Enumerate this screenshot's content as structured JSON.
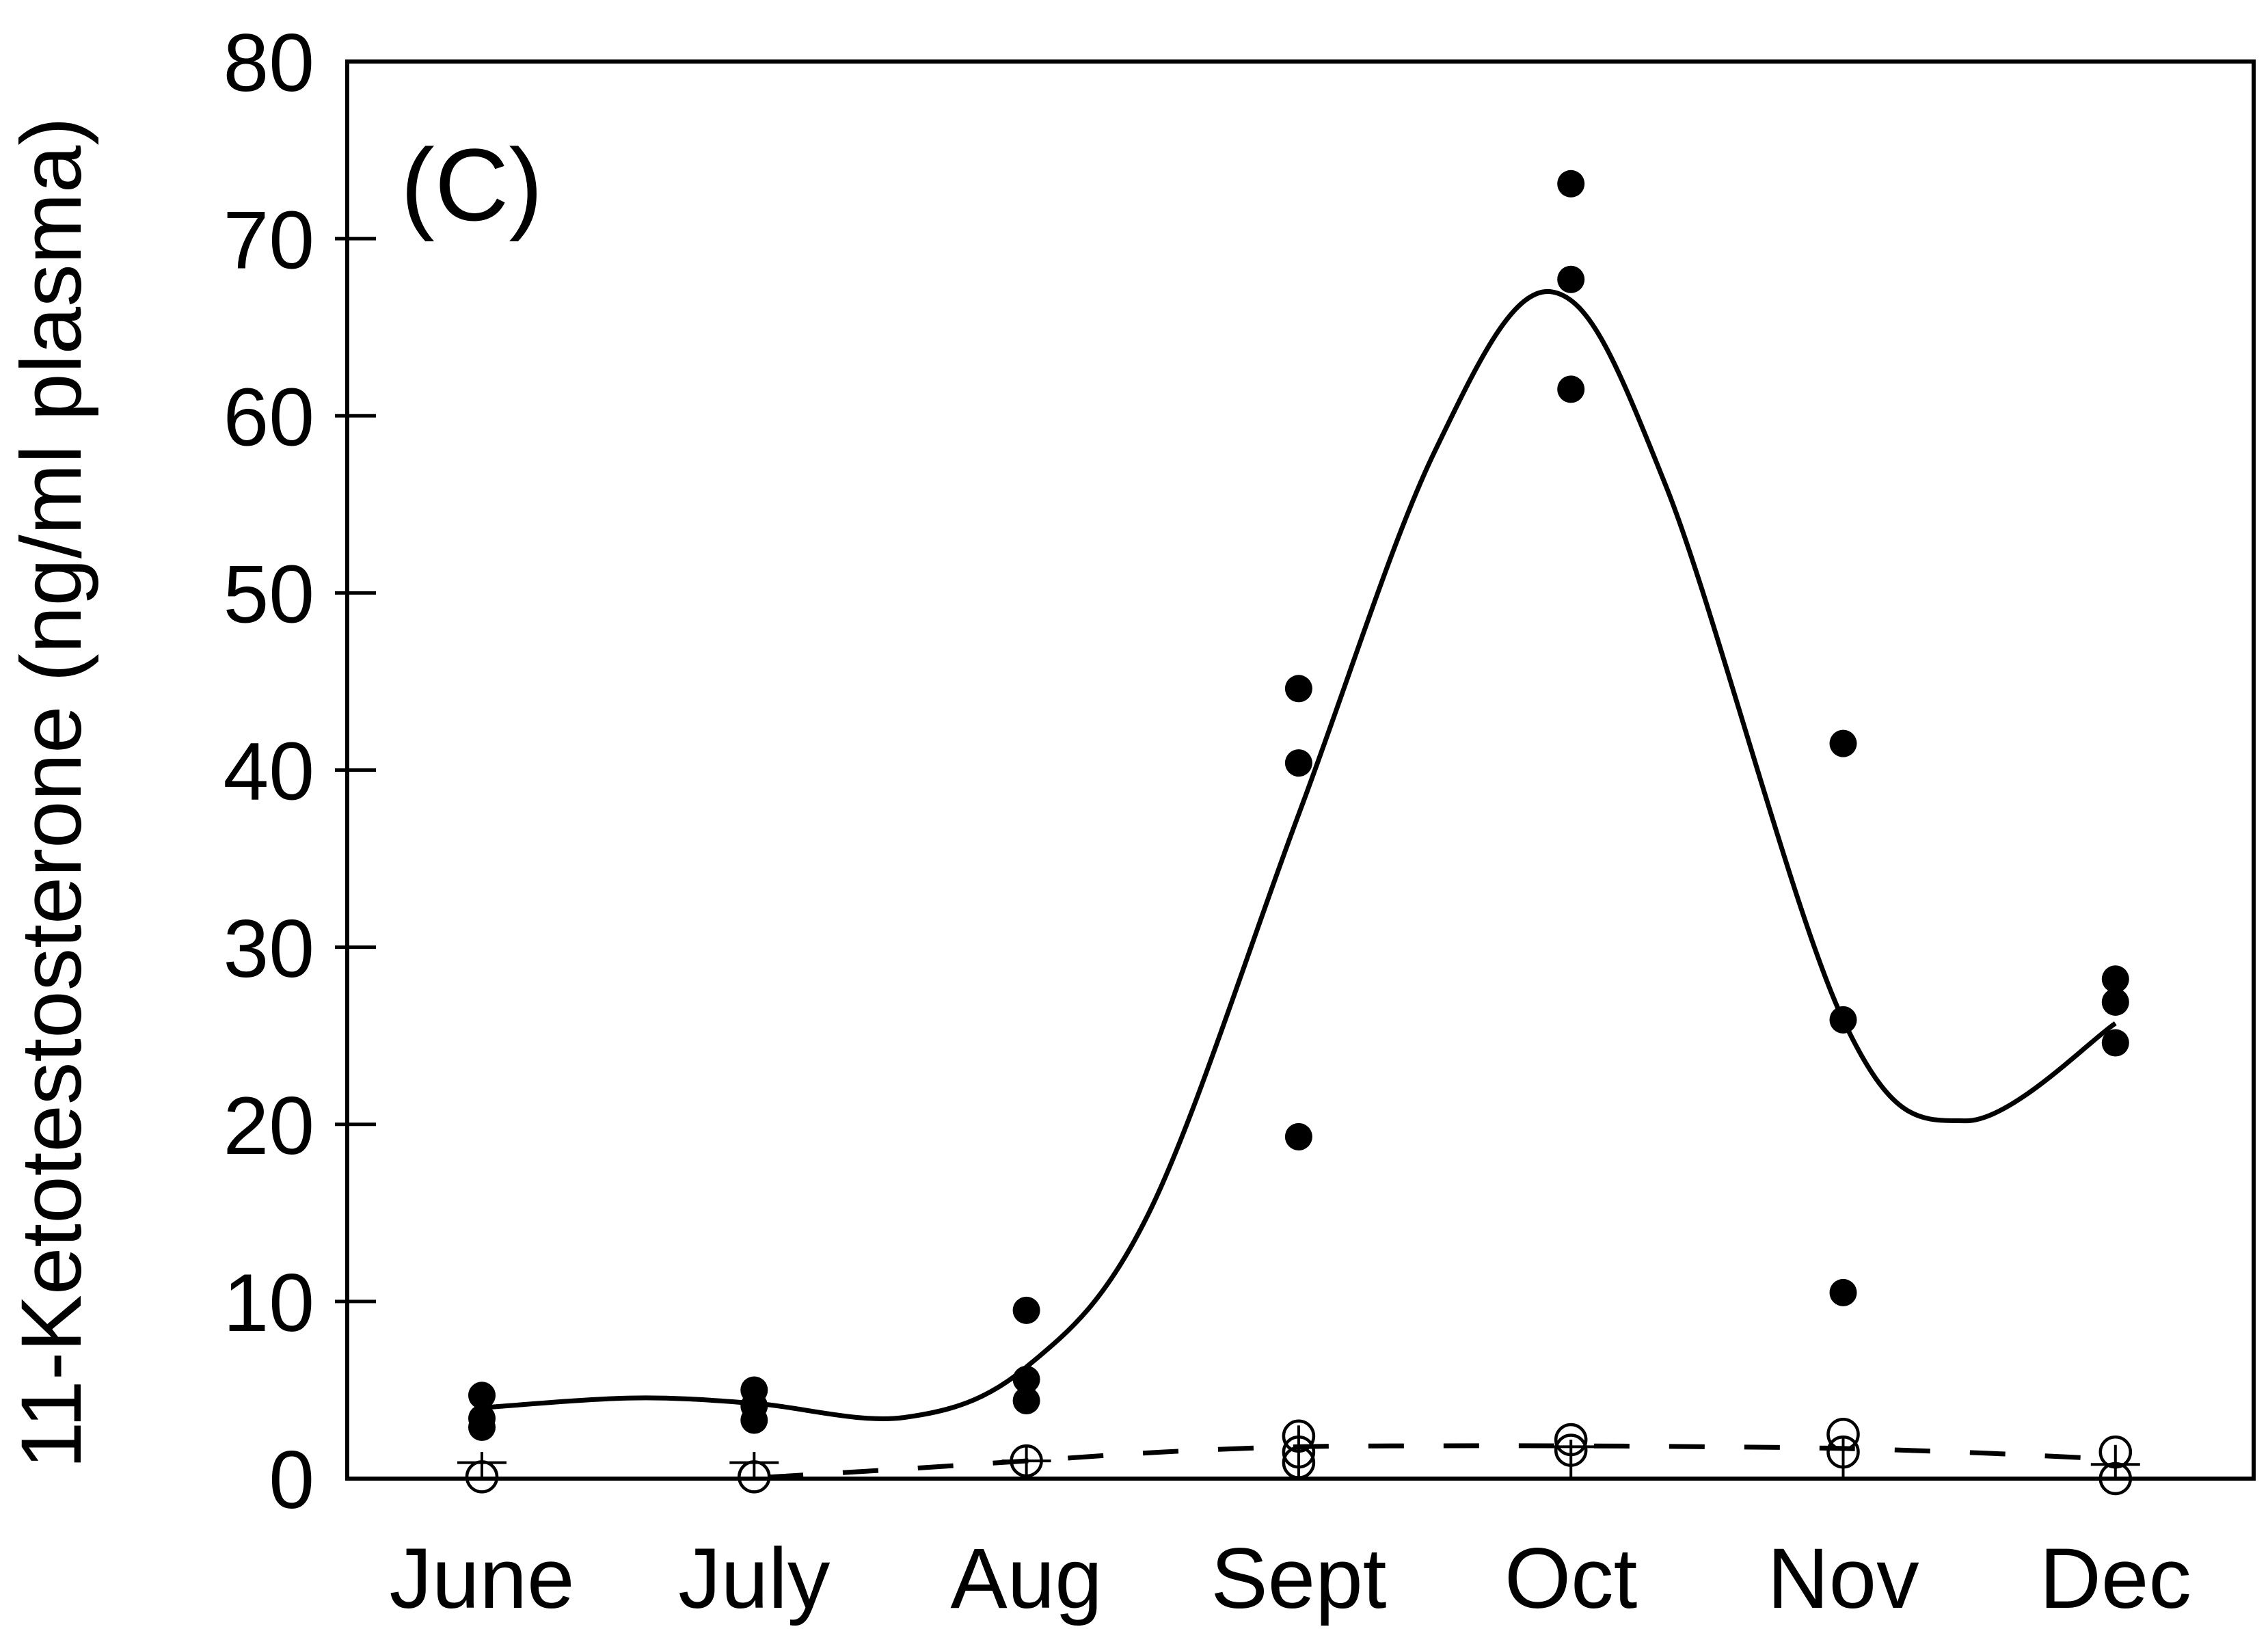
{
  "panel_label": "(C)",
  "colors": {
    "foreground": "#000000",
    "background": "#ffffff"
  },
  "y_axis": {
    "label": "11-Ketotestosterone (ng/ml plasma)",
    "tick_labels": [
      "0",
      "10",
      "20",
      "30",
      "40",
      "50",
      "60",
      "70",
      "80"
    ],
    "tick_values": [
      0,
      10,
      20,
      30,
      40,
      50,
      60,
      70,
      80
    ]
  },
  "x_axis": {
    "categories": [
      "June",
      "July",
      "Aug",
      "Sept",
      "Oct",
      "Nov",
      "Dec"
    ]
  },
  "chart_data": {
    "type": "scatter",
    "title": "(C)",
    "xlabel": "",
    "ylabel": "11-Ketotestosterone (ng/ml plasma)",
    "ylim": [
      0,
      80
    ],
    "grid": false,
    "legend": "none",
    "categories": [
      "June",
      "July",
      "Aug",
      "Sept",
      "Oct",
      "Nov",
      "Dec"
    ],
    "series": [
      {
        "name": "filled-circles",
        "marker": "filled-circle",
        "points_month_value": [
          [
            0,
            4.7
          ],
          [
            0,
            3.4
          ],
          [
            0,
            2.9
          ],
          [
            1,
            5.0
          ],
          [
            1,
            4.1
          ],
          [
            1,
            3.3
          ],
          [
            2,
            9.5
          ],
          [
            2,
            5.6
          ],
          [
            2,
            4.4
          ],
          [
            3,
            44.6
          ],
          [
            3,
            40.4
          ],
          [
            3,
            19.3
          ],
          [
            4,
            73.1
          ],
          [
            4,
            67.7
          ],
          [
            4,
            61.5
          ],
          [
            5,
            41.5
          ],
          [
            5,
            25.9
          ],
          [
            5,
            10.5
          ],
          [
            6,
            28.2
          ],
          [
            6,
            26.9
          ],
          [
            6,
            24.6
          ]
        ]
      },
      {
        "name": "open-circles",
        "marker": "open-circle",
        "points_month_value": [
          [
            0,
            0.1
          ],
          [
            1,
            0.1
          ],
          [
            2,
            1.0
          ],
          [
            3,
            2.4
          ],
          [
            3,
            1.5
          ],
          [
            3,
            0.9
          ],
          [
            4,
            2.2
          ],
          [
            4,
            1.6
          ],
          [
            5,
            2.5
          ],
          [
            5,
            1.5
          ],
          [
            6,
            1.5
          ],
          [
            6,
            0.0
          ]
        ]
      }
    ],
    "fitted_curves": [
      {
        "name": "filled-circle-fit",
        "style": "solid",
        "points_month_value": [
          [
            0,
            4.0
          ],
          [
            0.55,
            4.55
          ],
          [
            1,
            4.25
          ],
          [
            1.55,
            3.45
          ],
          [
            2,
            6.3
          ],
          [
            2.45,
            15
          ],
          [
            3,
            37.5
          ],
          [
            3.5,
            58
          ],
          [
            3.93,
            67
          ],
          [
            4.35,
            56
          ],
          [
            5,
            25.9
          ],
          [
            5.45,
            20.2
          ],
          [
            6,
            25.7
          ]
        ]
      },
      {
        "name": "open-circle-fit",
        "style": "dashed",
        "points_month_value": [
          [
            1.05,
            0.08
          ],
          [
            1.5,
            0.5
          ],
          [
            2,
            1.0
          ],
          [
            2.5,
            1.5
          ],
          [
            3,
            1.8
          ],
          [
            3.5,
            1.85
          ],
          [
            4,
            1.85
          ],
          [
            4.5,
            1.8
          ],
          [
            5,
            1.7
          ],
          [
            5.5,
            1.45
          ],
          [
            5.92,
            1.15
          ]
        ]
      }
    ],
    "error_whiskers": [
      {
        "month": 0,
        "lo": 0,
        "hi": 1.5,
        "cap": 0.9
      },
      {
        "month": 1,
        "lo": 0,
        "hi": 1.5,
        "cap": 0.9
      },
      {
        "month": 2,
        "lo": 0.1,
        "hi": 1.9,
        "cap": 1.0
      },
      {
        "month": 3,
        "lo": 0,
        "hi": 3.0,
        "cap": null
      },
      {
        "month": 4,
        "lo": 0,
        "hi": 2.2,
        "cap": 1.8
      },
      {
        "month": 5,
        "lo": 0,
        "hi": 2.4,
        "cap": null
      },
      {
        "month": 6,
        "lo": 0,
        "hi": 1.9,
        "cap": 0.8
      }
    ]
  }
}
